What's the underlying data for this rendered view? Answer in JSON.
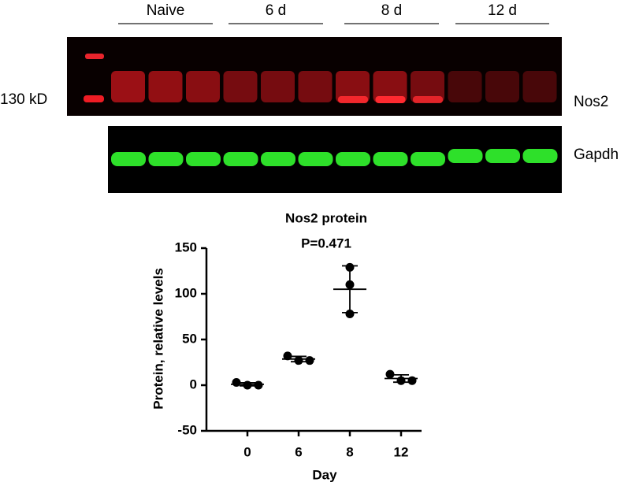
{
  "blot": {
    "groups": [
      "Naive",
      "6 d",
      "8 d",
      "12 d"
    ],
    "marker_label": "130 kD",
    "bands": [
      "Nos2",
      "Gapdh"
    ]
  },
  "chart_data": {
    "type": "dot",
    "title": "Nos2  protein",
    "subtitle": "P=0.471",
    "x_label": "Day",
    "y_label": "Protein, relative levels",
    "categories": [
      "0",
      "6",
      "8",
      "12"
    ],
    "points": [
      [
        3,
        0,
        0
      ],
      [
        32,
        27,
        27
      ],
      [
        129,
        110,
        78
      ],
      [
        12,
        5,
        5
      ]
    ],
    "means": [
      1,
      28.6,
      105,
      7.3
    ],
    "sds": [
      1.7,
      2.9,
      25.6,
      4
    ],
    "color": "#000000",
    "ylim": [
      -50,
      150
    ],
    "yticks": [
      -50,
      0,
      50,
      100,
      150
    ]
  }
}
